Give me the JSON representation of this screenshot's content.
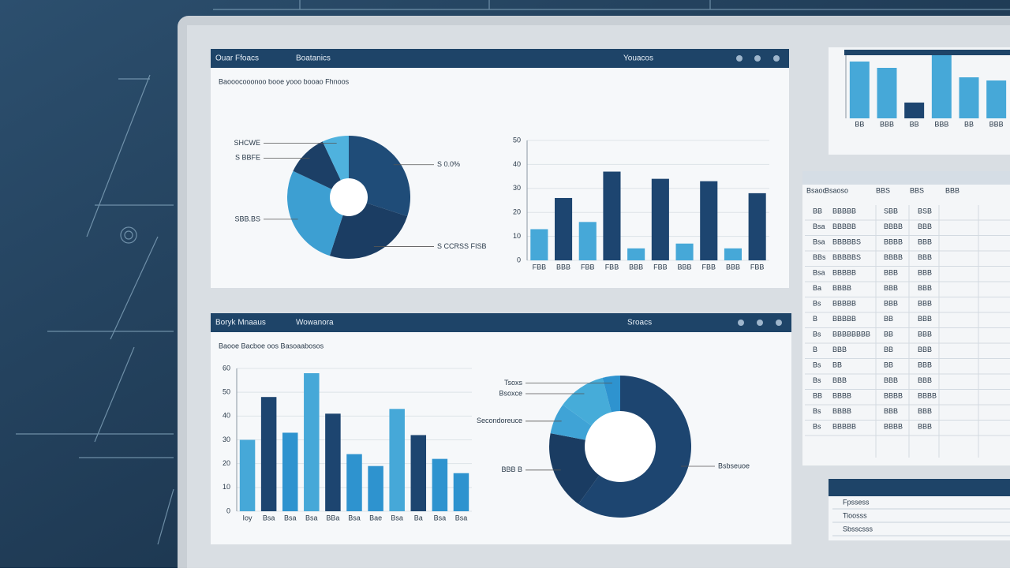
{
  "chart_data": [
    {
      "type": "pie",
      "title": "Ouar Ffoacs",
      "subtitle": "Boatanics",
      "note": "Youacos",
      "caption": "Baooocooonoo booe yooo booao Fhnoos",
      "categories": [
        "S 0.0%",
        "S CCRSS FISB",
        "SBB.BS",
        "S BBFE",
        "SHCWE"
      ],
      "values": [
        30,
        25,
        27,
        11,
        7
      ],
      "colors": [
        "#1f4c78",
        "#1b3d63",
        "#3d9fd2",
        "#1c3f66",
        "#4fb2de"
      ]
    },
    {
      "type": "bar",
      "categories": [
        "FBB",
        "BBB",
        "FBB",
        "FBB",
        "BBB",
        "FBB",
        "BBB",
        "FBB",
        "BBB",
        "FBB"
      ],
      "values": [
        13,
        26,
        16,
        37,
        5,
        34,
        7,
        33,
        5,
        28
      ],
      "colors": [
        "#46a8d8",
        "#1d4570",
        "#46a8d8",
        "#1d4570",
        "#46a8d8",
        "#1d4570",
        "#46a8d8",
        "#1d4570",
        "#46a8d8",
        "#1d4570"
      ],
      "ylim": [
        0,
        50
      ],
      "yticks": [
        0,
        10,
        20,
        30,
        40,
        50
      ]
    },
    {
      "type": "bar",
      "title": "Boryk Mnaaus",
      "subtitle": "Wowanora",
      "note": "Sroacs",
      "caption": "Baooe Bacboe oos Basoaabosos",
      "categories": [
        "Ioy",
        "Bsa",
        "Bsa",
        "Bsa",
        "BBa",
        "Bsa",
        "Bae",
        "Bsa",
        "Ba",
        "Bsa",
        "Bsa"
      ],
      "values": [
        30,
        48,
        33,
        58,
        41,
        24,
        19,
        43,
        32,
        22,
        16
      ],
      "colors": [
        "#46a8d8",
        "#1d4570",
        "#2e93cf",
        "#46a8d8",
        "#1d4570",
        "#2e93cf",
        "#2e93cf",
        "#46a8d8",
        "#1d4570",
        "#2e93cf",
        "#2e93cf"
      ],
      "ylim": [
        0,
        60
      ],
      "yticks": [
        0,
        10,
        20,
        30,
        40,
        50,
        60
      ]
    },
    {
      "type": "donut",
      "categories": [
        "Bsbseuoe",
        "BBB B",
        "Secondoreuce",
        "Bsoxce",
        "Tsoxs"
      ],
      "values": [
        60,
        18,
        7,
        11,
        4
      ],
      "colors": [
        "#1d4570",
        "#1a3c62",
        "#3fa3d6",
        "#46acd9",
        "#2e93cf"
      ]
    },
    {
      "type": "bar",
      "categories": [
        "BB",
        "BBB",
        "BB",
        "BBB",
        "BB",
        "BBB"
      ],
      "values": [
        90,
        80,
        25,
        100,
        65,
        60
      ],
      "colors": [
        "#46a8d8",
        "#46a8d8",
        "#1d4570",
        "#46a8d8",
        "#46a8d8",
        "#46a8d8"
      ],
      "ylim": [
        0,
        100
      ]
    }
  ],
  "side_table": {
    "header": [
      "Bsaoc",
      "Bsaoso",
      "BBS",
      "BBS",
      "BBB"
    ],
    "rows": [
      [
        "BB",
        "BBBBB",
        "SBB",
        "BSB"
      ],
      [
        "Bsa",
        "BBBBB",
        "BBBB",
        "BBB"
      ],
      [
        "Bsa",
        "BBBBBS",
        "BBBB",
        "BBB"
      ],
      [
        "BBs",
        "BBBBBS",
        "BBBB",
        "BBB"
      ],
      [
        "Bsa",
        "BBBBB",
        "BBB",
        "BBB"
      ],
      [
        "Ba",
        "BBBB",
        "BBB",
        "BBB"
      ],
      [
        "Bs",
        "BBBBB",
        "BBB",
        "BBB"
      ],
      [
        "B",
        "BBBBB",
        "BB",
        "BBB"
      ],
      [
        "Bs",
        "BBBBBBBB",
        "BB",
        "BBB"
      ],
      [
        "B",
        "BBB",
        "BB",
        "BBB"
      ],
      [
        "Bs",
        "BB",
        "BB",
        "BBB"
      ],
      [
        "Bs",
        "BBB",
        "BBB",
        "BBB"
      ],
      [
        "BB",
        "BBBB",
        "BBBB",
        "BBBB"
      ],
      [
        "Bs",
        "BBBB",
        "BBB",
        "BBB"
      ],
      [
        "Bs",
        "BBBBB",
        "BBBB",
        "BBB"
      ]
    ]
  },
  "side_list": [
    "Fpssess",
    "Tioosss",
    "Sbsscsss"
  ]
}
